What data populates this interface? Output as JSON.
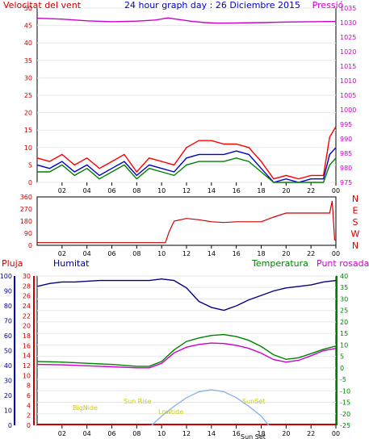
{
  "chart_data": [
    {
      "type": "line",
      "title": "24 hour graph day : 26 Diciembre 2015",
      "left_axis_title": "Velocitat del vent",
      "right_axis_title": "Pressió",
      "x_ticks": [
        "02",
        "04",
        "06",
        "08",
        "10",
        "12",
        "14",
        "16",
        "18",
        "20",
        "22",
        "00"
      ],
      "x_range": [
        0,
        24
      ],
      "left_ticks": [
        "0",
        "5",
        "10",
        "15",
        "20",
        "25",
        "30",
        "35",
        "40",
        "45",
        "50"
      ],
      "left_range": [
        0,
        50
      ],
      "right_ticks": [
        "975",
        "980",
        "985",
        "990",
        "995",
        "1000",
        "1005",
        "1010",
        "1015",
        "1020",
        "1025",
        "1030",
        "1035"
      ],
      "right_range": [
        975,
        1035
      ],
      "colors": {
        "axis_left": "#cc0000",
        "axis_right": "#cc00cc",
        "title": "#0000cc",
        "gust": "#ff0000",
        "wind": "#0000cc",
        "wind_alt": "#008000",
        "pressure": "#cc00cc"
      },
      "series": [
        {
          "color": "#cc00cc",
          "axis": "right",
          "x": [
            0,
            2,
            4,
            6,
            8,
            9.5,
            10.5,
            11.5,
            12.5,
            13.5,
            14.5,
            16,
            18,
            20,
            22,
            24
          ],
          "y": [
            1031.5,
            1031.2,
            1030.6,
            1030.3,
            1030.5,
            1030.9,
            1031.6,
            1031.0,
            1030.4,
            1030.0,
            1029.8,
            1029.9,
            1030.0,
            1030.2,
            1030.3,
            1030.4
          ]
        },
        {
          "color": "#ff0000",
          "axis": "left",
          "x": [
            0,
            1,
            2,
            3,
            4,
            5,
            6,
            7,
            8,
            9,
            10,
            11,
            12,
            13,
            14,
            15,
            16,
            17,
            18,
            19,
            20,
            21,
            22,
            23,
            23.5,
            24
          ],
          "y": [
            7,
            6,
            8,
            5,
            7,
            4,
            6,
            8,
            3,
            7,
            6,
            5,
            10,
            12,
            12,
            11,
            11,
            10,
            6,
            1,
            2,
            1,
            2,
            2,
            13,
            16
          ]
        },
        {
          "color": "#0000cc",
          "axis": "left",
          "x": [
            0,
            1,
            2,
            3,
            4,
            5,
            6,
            7,
            8,
            9,
            10,
            11,
            12,
            13,
            14,
            15,
            16,
            17,
            18,
            19,
            20,
            21,
            22,
            23,
            23.5,
            24
          ],
          "y": [
            5,
            4,
            6,
            3,
            5,
            2,
            4,
            6,
            2,
            5,
            4,
            3,
            7,
            8,
            8,
            8,
            9,
            8,
            4,
            0,
            1,
            0,
            1,
            1,
            8,
            10
          ]
        },
        {
          "color": "#008000",
          "axis": "left",
          "x": [
            0,
            1,
            2,
            3,
            4,
            5,
            6,
            7,
            8,
            9,
            10,
            11,
            12,
            13,
            14,
            15,
            16,
            17,
            18,
            19,
            20,
            21,
            22,
            23,
            23.5,
            24
          ],
          "y": [
            3,
            3,
            5,
            2,
            4,
            1,
            3,
            5,
            1,
            4,
            3,
            2,
            5,
            6,
            6,
            6,
            7,
            6,
            3,
            0,
            0,
            0,
            0,
            0,
            5,
            7
          ]
        }
      ]
    },
    {
      "type": "line",
      "x_ticks": [
        "02",
        "04",
        "06",
        "08",
        "10",
        "12",
        "14",
        "16",
        "18",
        "20",
        "22",
        "00"
      ],
      "x_range": [
        0,
        24
      ],
      "left_ticks": [
        "0",
        "90",
        "180",
        "270",
        "360"
      ],
      "left_range": [
        0,
        360
      ],
      "right_labels": [
        "N",
        "W",
        "S",
        "E",
        "N"
      ],
      "colors": {
        "axis": "#cc0000",
        "line": "#cc0000"
      },
      "series": [
        {
          "color": "#cc0000",
          "x": [
            0,
            10.3,
            10.6,
            11,
            12,
            13,
            14,
            15,
            16,
            17,
            18,
            19,
            20,
            21,
            22,
            23,
            23.5,
            23.7,
            23.9,
            24
          ],
          "y": [
            20,
            20,
            100,
            180,
            200,
            190,
            175,
            170,
            175,
            175,
            175,
            210,
            240,
            240,
            240,
            240,
            240,
            330,
            40,
            40
          ]
        }
      ]
    },
    {
      "type": "line",
      "labels": {
        "rain": "Pluja",
        "humidity": "Humitat",
        "temperature": "Temperatura",
        "dewpoint": "Punt rosada"
      },
      "x_ticks": [
        "02",
        "04",
        "06",
        "08",
        "10",
        "12",
        "14",
        "16",
        "18",
        "20",
        "22",
        "00"
      ],
      "x_range": [
        0,
        24
      ],
      "rain_ticks": [
        "0",
        "10",
        "20",
        "30",
        "40",
        "50",
        "60",
        "70",
        "80",
        "90",
        "100"
      ],
      "rain_range": [
        0,
        100
      ],
      "humidity_ticks": [
        "0",
        "2",
        "4",
        "6",
        "8",
        "10",
        "12",
        "14",
        "16",
        "18",
        "20",
        "22",
        "24",
        "26",
        "28",
        "30"
      ],
      "humidity_range": [
        0,
        30
      ],
      "temperature_ticks": [
        "-25",
        "-20",
        "-15",
        "-10",
        "-5",
        "0",
        "5",
        "10",
        "15",
        "20",
        "25",
        "30",
        "35",
        "40"
      ],
      "temperature_range": [
        -25,
        40
      ],
      "sun_labels": {
        "begin": "BigNide",
        "sunrise": "Sun Rise",
        "lowtide": "Lowtide",
        "sunset": "SunSet",
        "sunset2": "Sun Set"
      },
      "colors": {
        "rain": "#cc0000",
        "humidity": "#000080",
        "temperature": "#008000",
        "dewpoint": "#cc00cc",
        "sun": "#8ab4e8",
        "sun_labels": "#cccc00"
      },
      "series": [
        {
          "color": "#000080",
          "axis": "rain",
          "x": [
            0,
            1,
            2,
            3,
            5,
            7,
            9,
            10,
            11,
            12,
            13,
            14,
            15,
            16,
            17,
            18,
            19,
            20,
            21,
            22,
            23,
            24
          ],
          "y": [
            93,
            95,
            96,
            96,
            97,
            97,
            97,
            98,
            97,
            92,
            83,
            79,
            77,
            80,
            84,
            87,
            90,
            92,
            93,
            94,
            96,
            97
          ]
        },
        {
          "color": "#008000",
          "axis": "temperature",
          "x": [
            0,
            2,
            4,
            6,
            8,
            9,
            10,
            11,
            12,
            13,
            14,
            15,
            16,
            17,
            18,
            19,
            20,
            21,
            22,
            23,
            24
          ],
          "y": [
            2.8,
            2.5,
            2.0,
            1.5,
            0.7,
            0.7,
            2.8,
            7.8,
            11.5,
            13.0,
            14.1,
            14.5,
            13.6,
            12.0,
            9.3,
            5.7,
            3.7,
            4.4,
            6.2,
            8.1,
            9.5
          ]
        },
        {
          "color": "#cc00cc",
          "axis": "temperature",
          "x": [
            0,
            2,
            4,
            6,
            8,
            9,
            10,
            11,
            12,
            13,
            14,
            15,
            16,
            17,
            18,
            19,
            20,
            21,
            22,
            23,
            24
          ],
          "y": [
            1.5,
            1.3,
            0.9,
            0.5,
            0.0,
            0.0,
            2.0,
            6.5,
            9.0,
            10.2,
            10.8,
            10.6,
            9.8,
            8.5,
            6.4,
            3.6,
            2.5,
            3.3,
            5.3,
            7.5,
            8.5
          ]
        },
        {
          "color": "#8ab4e8",
          "axis": "temperature",
          "x": [
            9.2,
            10,
            11,
            12,
            13,
            14,
            15,
            16,
            17,
            18,
            18.6
          ],
          "y": [
            -25,
            -21,
            -16.7,
            -13,
            -10.4,
            -9.5,
            -10.4,
            -13,
            -16.7,
            -21,
            -25
          ]
        }
      ]
    }
  ]
}
